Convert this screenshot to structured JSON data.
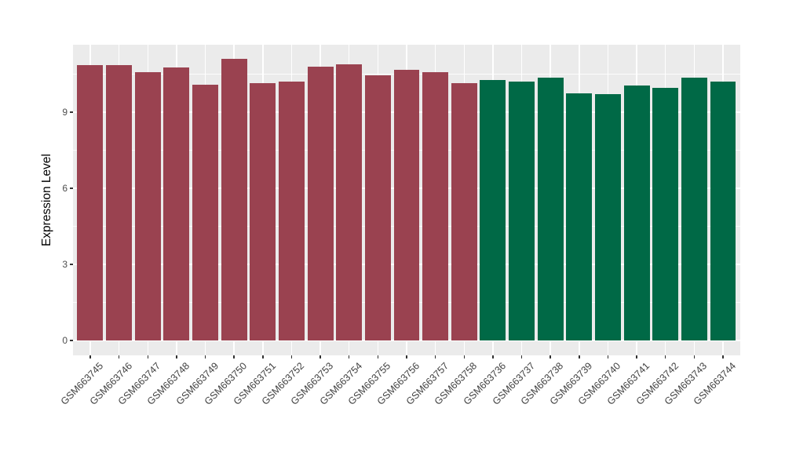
{
  "chart_data": {
    "type": "bar",
    "title": "",
    "xlabel": "",
    "ylabel": "Expression Level",
    "ylim": [
      -0.59,
      11.66
    ],
    "yticks": [
      0,
      3,
      6,
      9
    ],
    "y_minor_gridlines": [
      1.5,
      4.5,
      7.5,
      10.5
    ],
    "grid": "on",
    "legend_position": "none",
    "series": [
      {
        "name": "group_red",
        "color": "#9A4250",
        "categories": [
          "GSM663745",
          "GSM663746",
          "GSM663747",
          "GSM663748",
          "GSM663749",
          "GSM663750",
          "GSM663751",
          "GSM663752",
          "GSM663753",
          "GSM663754",
          "GSM663755",
          "GSM663756",
          "GSM663757",
          "GSM663758"
        ],
        "values": [
          10.87,
          10.87,
          10.57,
          10.77,
          10.07,
          11.1,
          10.15,
          10.22,
          10.8,
          10.9,
          10.45,
          10.67,
          10.58,
          10.13
        ]
      },
      {
        "name": "group_green",
        "color": "#006946",
        "categories": [
          "GSM663736",
          "GSM663737",
          "GSM663738",
          "GSM663739",
          "GSM663740",
          "GSM663741",
          "GSM663742",
          "GSM663743",
          "GSM663744"
        ],
        "values": [
          10.27,
          10.22,
          10.35,
          9.74,
          9.71,
          10.04,
          9.95,
          10.36,
          10.2
        ]
      }
    ],
    "colors": {
      "panel_background": "#EBEBEB",
      "gridline": "#FFFFFF",
      "figure_background": "#FFFFFF",
      "tick_text": "#4D4D4D",
      "axis_title_text": "#000000"
    }
  }
}
